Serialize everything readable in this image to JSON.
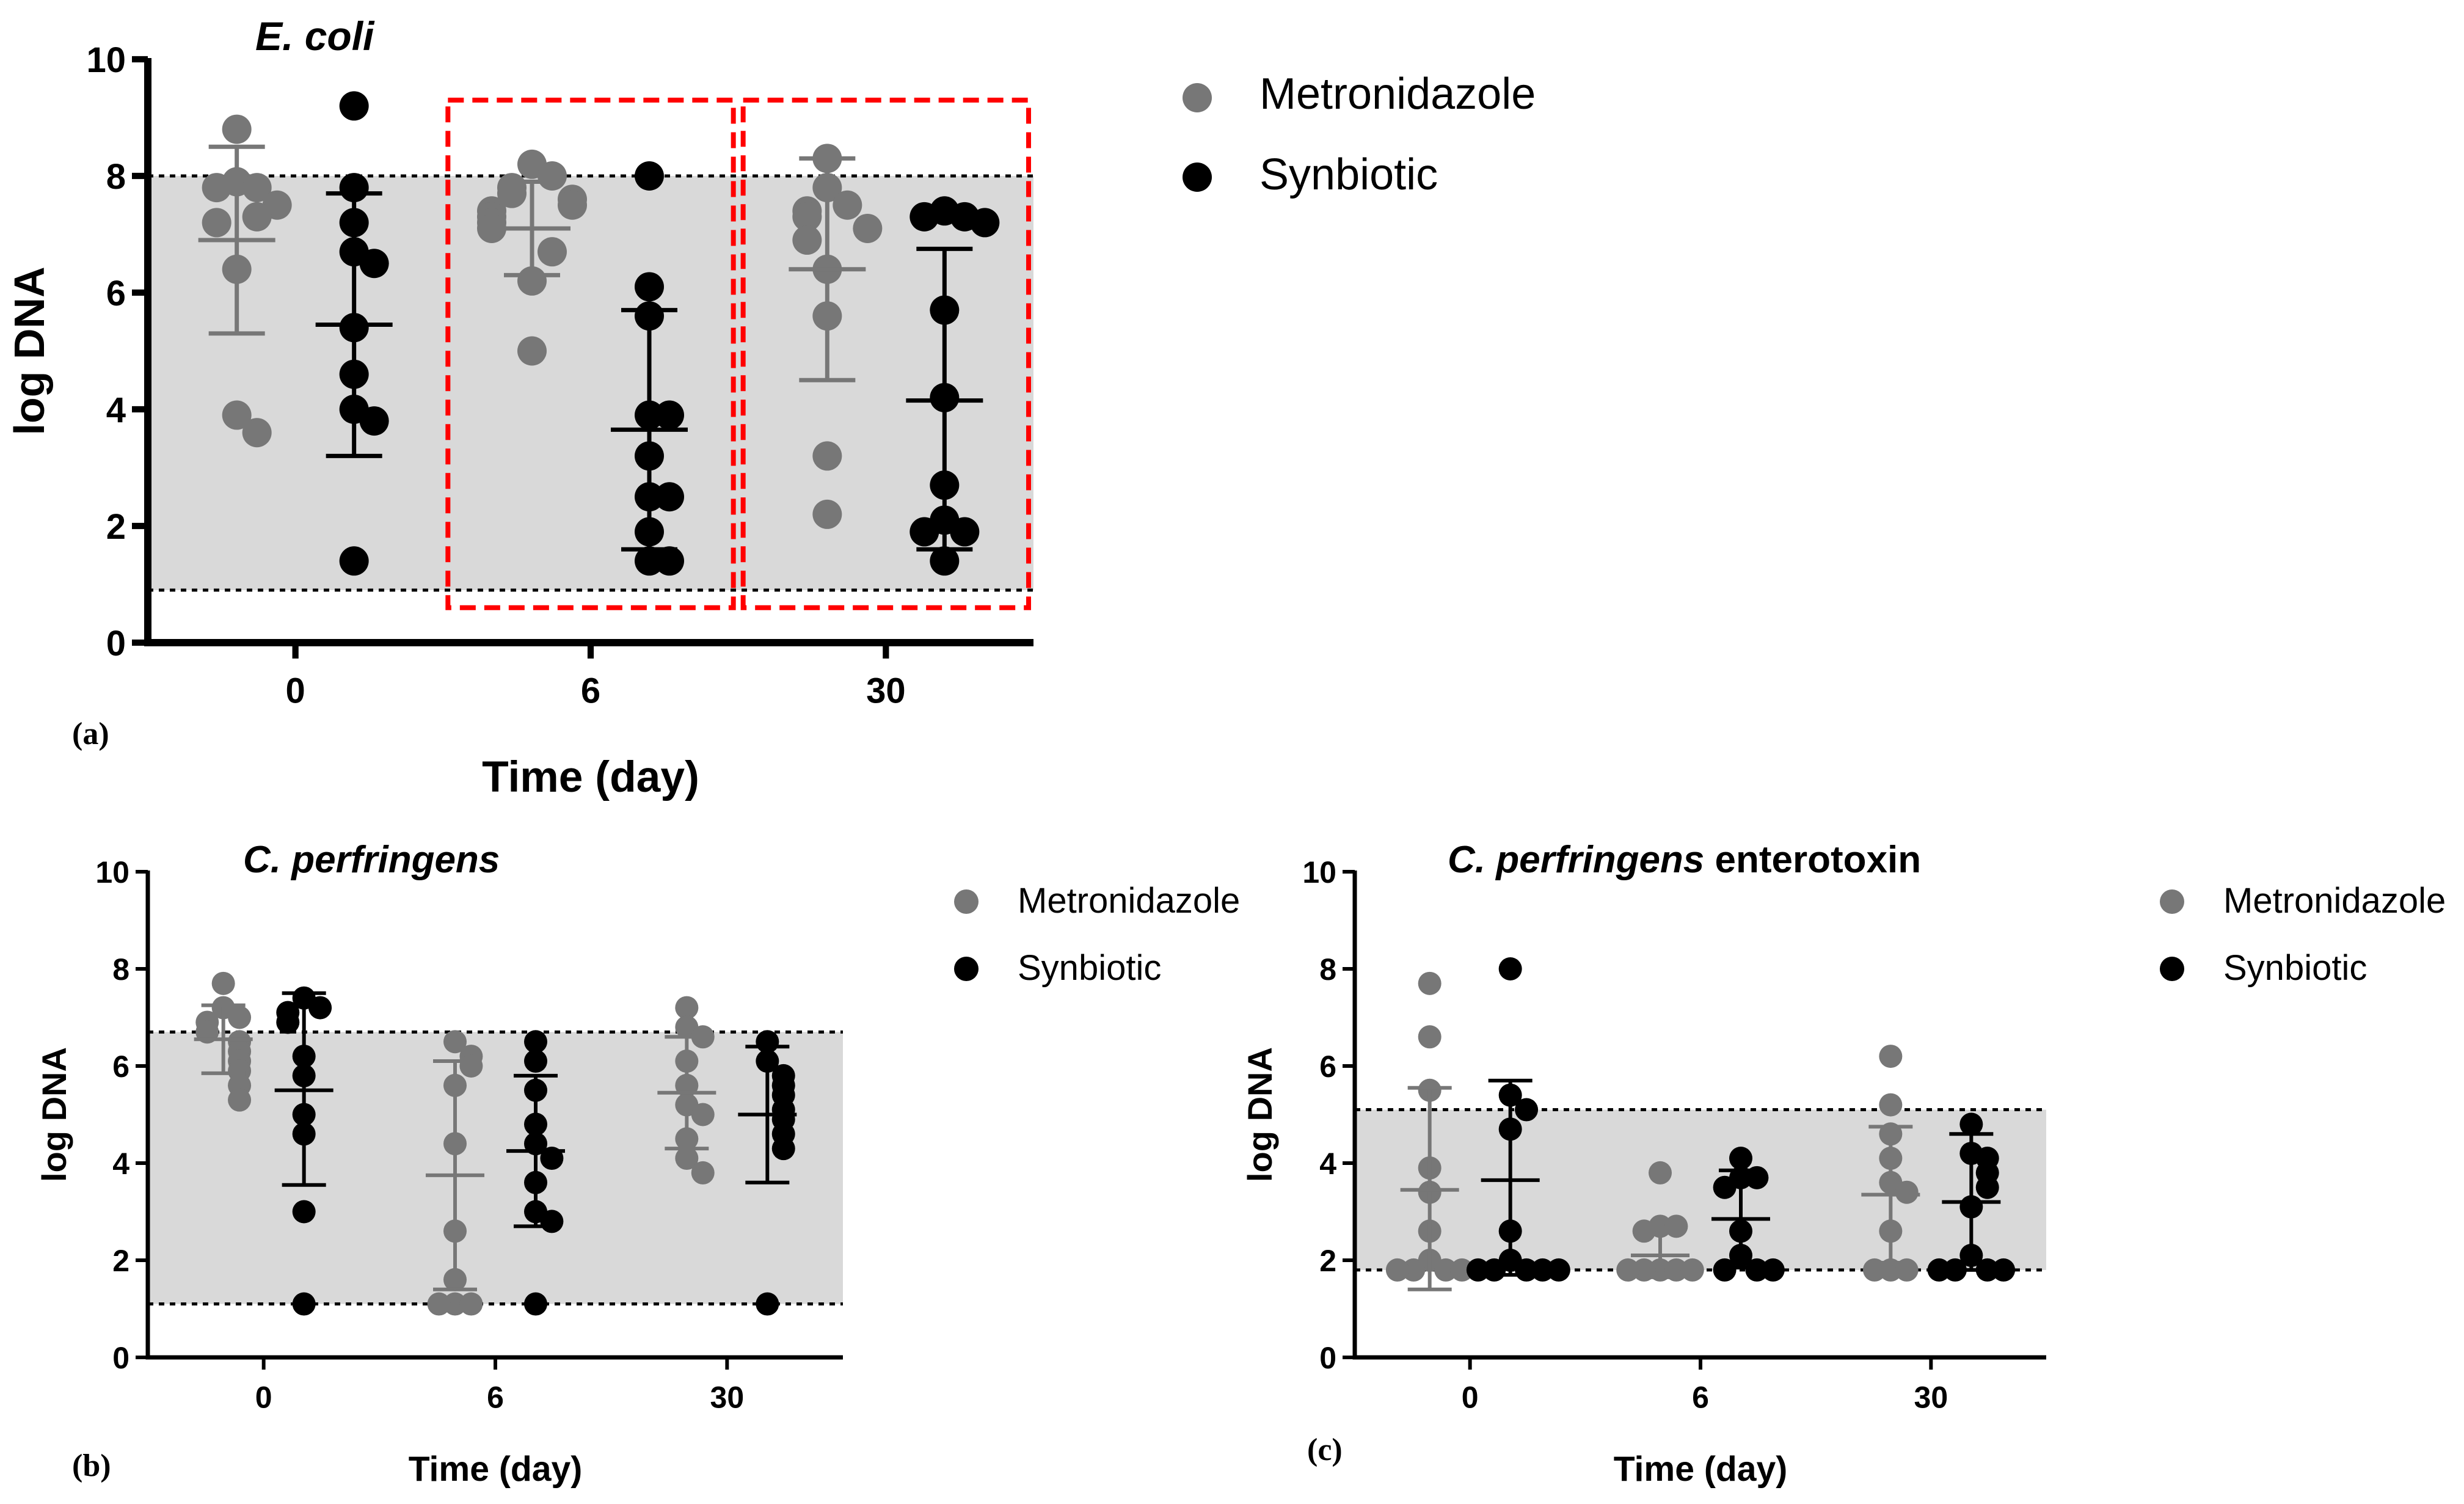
{
  "colors": {
    "metronidazole": "#777777",
    "synbiotic": "#000000",
    "band": "#d9d9d9",
    "highlight": "#ff0000",
    "axis": "#000000"
  },
  "legend": {
    "metronidazole": "Metronidazole",
    "synbiotic": "Synbiotic"
  },
  "chart_data": [
    {
      "type": "scatter",
      "panel_label": "(a)",
      "title": "E. coli",
      "title_suffix": "",
      "xlabel": "Time (day)",
      "ylabel": "log DNA",
      "ylim": [
        0,
        10
      ],
      "yticks": [
        "0",
        "2",
        "4",
        "6",
        "8",
        "10"
      ],
      "categories": [
        "0",
        "6",
        "30"
      ],
      "reference_band": [
        0.9,
        8.0
      ],
      "highlighted_categories": [
        "6",
        "30"
      ],
      "series": [
        {
          "name": "Metronidazole",
          "points": [
            [
              8.8,
              7.9,
              7.8,
              7.8,
              7.5,
              7.3,
              7.2,
              6.4,
              3.9,
              3.6
            ],
            [
              8.2,
              8.0,
              7.8,
              7.7,
              7.6,
              7.5,
              7.4,
              7.3,
              7.2,
              7.1,
              6.7,
              6.2,
              5.0
            ],
            [
              8.3,
              7.8,
              7.5,
              7.4,
              7.3,
              7.1,
              6.9,
              6.4,
              5.6,
              3.2,
              2.2
            ]
          ],
          "mean": [
            6.9,
            7.1,
            6.4
          ],
          "sd_low": [
            5.3,
            6.3,
            4.5
          ],
          "sd_high": [
            8.5,
            7.9,
            8.3
          ]
        },
        {
          "name": "Synbiotic",
          "points": [
            [
              9.2,
              7.8,
              7.2,
              6.7,
              6.5,
              5.4,
              4.6,
              4.0,
              3.8,
              1.4
            ],
            [
              8.0,
              6.1,
              5.6,
              3.9,
              3.9,
              3.2,
              2.5,
              2.5,
              1.9,
              1.4,
              1.4
            ],
            [
              7.4,
              7.3,
              7.3,
              7.2,
              5.7,
              4.2,
              2.7,
              2.1,
              1.9,
              1.9,
              1.4
            ]
          ],
          "mean": [
            5.45,
            3.65,
            4.15
          ],
          "sd_low": [
            3.2,
            1.6,
            1.6
          ],
          "sd_high": [
            7.7,
            5.7,
            6.75
          ]
        }
      ]
    },
    {
      "type": "scatter",
      "panel_label": "(b)",
      "title": "C. perfringens",
      "title_suffix": "",
      "xlabel": "Time (day)",
      "ylabel": "log DNA",
      "ylim": [
        0,
        10
      ],
      "yticks": [
        "0",
        "2",
        "4",
        "6",
        "8",
        "10"
      ],
      "categories": [
        "0",
        "6",
        "30"
      ],
      "reference_band": [
        1.1,
        6.7
      ],
      "highlighted_categories": [],
      "series": [
        {
          "name": "Metronidazole",
          "points": [
            [
              7.7,
              7.2,
              7.0,
              6.9,
              6.7,
              6.5,
              6.3,
              6.1,
              5.9,
              5.6,
              5.3
            ],
            [
              6.5,
              6.2,
              6.0,
              5.6,
              4.4,
              2.6,
              1.6,
              1.1,
              1.1,
              1.1
            ],
            [
              7.2,
              6.8,
              6.6,
              6.1,
              5.6,
              5.2,
              5.0,
              4.5,
              4.1,
              3.8
            ]
          ],
          "mean": [
            6.55,
            3.75,
            5.45
          ],
          "sd_low": [
            5.85,
            1.4,
            4.3
          ],
          "sd_high": [
            7.25,
            6.1,
            6.6
          ]
        },
        {
          "name": "Synbiotic",
          "points": [
            [
              7.4,
              7.2,
              7.1,
              6.9,
              6.2,
              5.8,
              5.0,
              4.6,
              3.0,
              1.1
            ],
            [
              6.5,
              6.1,
              5.5,
              4.8,
              4.4,
              4.1,
              3.6,
              3.0,
              2.8,
              1.1
            ],
            [
              6.5,
              6.1,
              5.8,
              5.6,
              5.4,
              5.1,
              4.9,
              4.6,
              4.3,
              1.1
            ]
          ],
          "mean": [
            5.5,
            4.25,
            5.0
          ],
          "sd_low": [
            3.55,
            2.7,
            3.6
          ],
          "sd_high": [
            7.5,
            5.8,
            6.4
          ]
        }
      ]
    },
    {
      "type": "scatter",
      "panel_label": "(c)",
      "title": "C. perfringens",
      "title_suffix": "enterotoxin",
      "xlabel": "Time (day)",
      "ylabel": "log DNA",
      "ylim": [
        0,
        10
      ],
      "yticks": [
        "0",
        "2",
        "4",
        "6",
        "8",
        "10"
      ],
      "categories": [
        "0",
        "6",
        "30"
      ],
      "reference_band": [
        1.8,
        5.1
      ],
      "highlighted_categories": [],
      "series": [
        {
          "name": "Metronidazole",
          "points": [
            [
              7.7,
              6.6,
              5.5,
              3.9,
              3.4,
              2.6,
              2.0,
              1.8,
              1.8,
              1.8,
              1.8
            ],
            [
              3.8,
              2.7,
              2.7,
              2.6,
              1.8,
              1.8,
              1.8,
              1.8,
              1.8
            ],
            [
              6.2,
              5.2,
              4.6,
              4.1,
              3.6,
              3.4,
              2.6,
              1.8,
              1.8,
              1.8
            ]
          ],
          "mean": [
            3.45,
            2.1,
            3.35
          ],
          "sd_low": [
            1.4,
            1.65,
            1.95
          ],
          "sd_high": [
            5.55,
            2.65,
            4.75
          ]
        },
        {
          "name": "Synbiotic",
          "points": [
            [
              8.0,
              5.4,
              5.1,
              4.7,
              2.6,
              2.0,
              1.8,
              1.8,
              1.8,
              1.8,
              1.8
            ],
            [
              4.1,
              3.7,
              3.7,
              3.5,
              2.6,
              2.1,
              1.8,
              1.8,
              1.8
            ],
            [
              4.8,
              4.2,
              4.1,
              3.8,
              3.5,
              3.1,
              2.1,
              1.8,
              1.8,
              1.8,
              1.8
            ]
          ],
          "mean": [
            3.65,
            2.85,
            3.2
          ],
          "sd_low": [
            1.7,
            1.85,
            1.8
          ],
          "sd_high": [
            5.7,
            3.85,
            4.6
          ]
        }
      ]
    }
  ]
}
